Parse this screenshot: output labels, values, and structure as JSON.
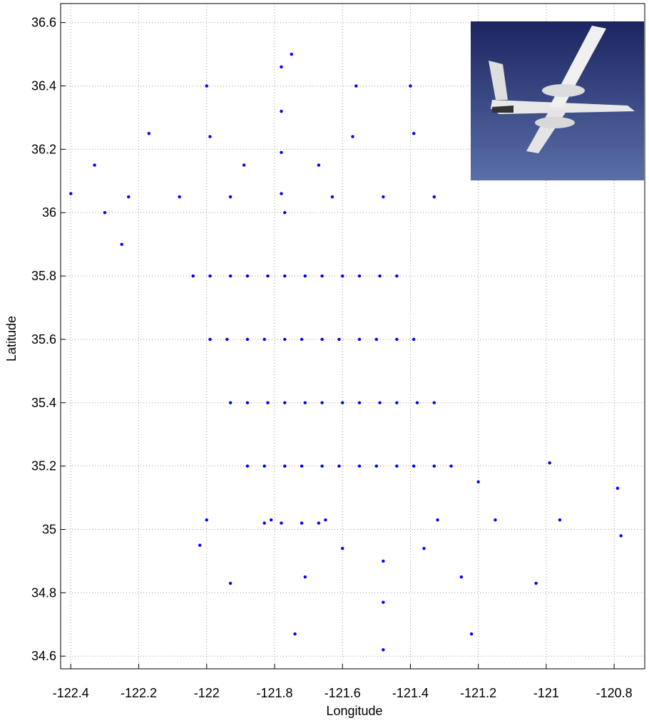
{
  "chart_data": {
    "type": "scatter",
    "xlabel": "Longitude",
    "ylabel": "Latitude",
    "xlim": [
      -122.43,
      -120.71
    ],
    "ylim": [
      34.56,
      36.66
    ],
    "xticks": [
      -122.4,
      -122.2,
      -122,
      -121.8,
      -121.6,
      -121.4,
      -121.2,
      -121,
      -120.8
    ],
    "yticks": [
      34.6,
      34.8,
      35,
      35.2,
      35.4,
      35.6,
      35.8,
      36,
      36.2,
      36.4,
      36.6
    ],
    "grid": true,
    "series": [
      {
        "color": "#0000ff",
        "x": [
          -122.04,
          -121.99,
          -121.93,
          -121.88,
          -121.99,
          -121.94,
          -121.88,
          -121.83,
          -121.93,
          -121.88,
          -121.82,
          -121.77,
          -121.88,
          -121.83,
          -121.77,
          -121.72,
          -121.82,
          -121.77,
          -121.71,
          -121.66,
          -121.77,
          -121.72,
          -121.66,
          -121.61,
          -121.71,
          -121.66,
          -121.6,
          -121.55,
          -121.66,
          -121.61,
          -121.55,
          -121.5,
          -121.6,
          -121.55,
          -121.49,
          -121.44,
          -121.55,
          -121.5,
          -121.44,
          -121.39,
          -121.49,
          -121.44,
          -121.38,
          -121.33,
          -121.44,
          -121.39,
          -121.33,
          -121.28,
          -121.83,
          -121.78,
          -121.72,
          -121.67,
          -121.63,
          -121.67,
          -121.78,
          -121.89,
          -121.93,
          -121.48,
          -121.57,
          -121.78,
          -121.99,
          -122.08,
          -121.33,
          -121.39,
          -121.56,
          -121.78,
          -122.0,
          -122.17,
          -122.23,
          -122.4,
          -122.3,
          -122.33,
          -121.75,
          -121.4,
          -122.25,
          -121.78,
          -121.77,
          -121.32,
          -121.36,
          -121.48,
          -121.6,
          -121.65,
          -121.15,
          -121.25,
          -121.48,
          -121.71,
          -121.81,
          -120.96,
          -121.03,
          -121.22,
          -121.48,
          -121.74,
          -121.93,
          -122.0,
          -120.79,
          -120.78,
          -120.99,
          -122.02,
          -121.2
        ],
        "y": [
          35.8,
          35.6,
          35.4,
          35.2,
          35.8,
          35.6,
          35.4,
          35.2,
          35.8,
          35.6,
          35.4,
          35.2,
          35.8,
          35.6,
          35.4,
          35.2,
          35.8,
          35.6,
          35.4,
          35.2,
          35.8,
          35.6,
          35.4,
          35.2,
          35.8,
          35.6,
          35.4,
          35.2,
          35.8,
          35.6,
          35.4,
          35.2,
          35.8,
          35.6,
          35.4,
          35.2,
          35.8,
          35.6,
          35.4,
          35.2,
          35.8,
          35.6,
          35.4,
          35.2,
          35.8,
          35.6,
          35.4,
          35.2,
          35.02,
          35.02,
          35.02,
          35.02,
          36.05,
          36.15,
          36.19,
          36.15,
          36.05,
          36.05,
          36.24,
          36.32,
          36.24,
          36.05,
          36.05,
          36.25,
          36.4,
          36.46,
          36.4,
          36.25,
          36.05,
          36.06,
          36.0,
          36.15,
          36.5,
          36.4,
          35.9,
          36.06,
          36.0,
          35.03,
          34.94,
          34.9,
          34.94,
          35.03,
          35.03,
          34.85,
          34.77,
          34.85,
          35.03,
          35.03,
          34.83,
          34.67,
          34.62,
          34.67,
          34.83,
          35.03,
          35.13,
          34.98,
          35.21,
          34.95,
          35.15
        ]
      }
    ]
  }
}
